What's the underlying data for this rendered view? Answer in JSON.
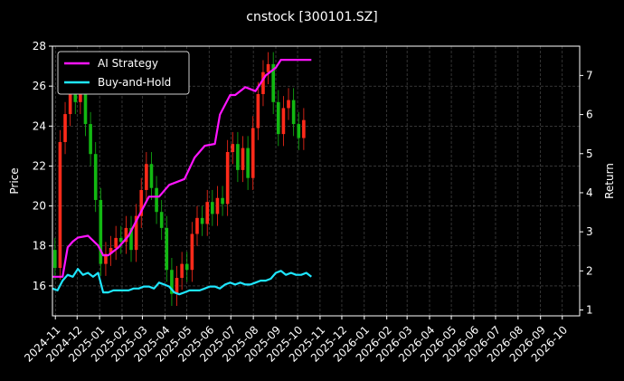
{
  "chart_data": {
    "type": "line",
    "title": "cnstock [300101.SZ]",
    "ylabel_left": "Price",
    "ylabel_right": "Return",
    "x_ticks": [
      "2024-11",
      "2024-12",
      "2025-01",
      "2025-02",
      "2025-03",
      "2025-04",
      "2025-05",
      "2025-06",
      "2025-07",
      "2025-08",
      "2025-09",
      "2025-10",
      "2025-11",
      "2025-12",
      "2026-01",
      "2026-02",
      "2026-03",
      "2026-04",
      "2026-05",
      "2026-06",
      "2026-07",
      "2026-08",
      "2026-09",
      "2026-10"
    ],
    "x_range": [
      "2024-10-28",
      "2026-10-25"
    ],
    "y_left_ticks": [
      16,
      18,
      20,
      22,
      24,
      26,
      28
    ],
    "y_left_range": [
      14.5,
      28
    ],
    "y_right_ticks": [
      1,
      2,
      3,
      4,
      5,
      6,
      7
    ],
    "y_right_range": [
      0.85,
      7.75
    ],
    "grid": true,
    "legend_position": "top-left",
    "colors": {
      "up": "#ff2a1a",
      "down": "#12b812",
      "ai": "#ff14ff",
      "bh": "#1ee6ff",
      "grid": "#555555"
    },
    "price": {
      "x": [
        "2024-10-28",
        "2024-11-04",
        "2024-11-11",
        "2024-11-18",
        "2024-11-25",
        "2024-12-02",
        "2024-12-09",
        "2024-12-16",
        "2024-12-23",
        "2024-12-30",
        "2025-01-06",
        "2025-01-13",
        "2025-01-20",
        "2025-01-27",
        "2025-02-03",
        "2025-02-10",
        "2025-02-17",
        "2025-02-24",
        "2025-03-03",
        "2025-03-10",
        "2025-03-17",
        "2025-03-24",
        "2025-03-31",
        "2025-04-07",
        "2025-04-14",
        "2025-04-21",
        "2025-04-28",
        "2025-05-05",
        "2025-05-12",
        "2025-05-19",
        "2025-05-26",
        "2025-06-02",
        "2025-06-09",
        "2025-06-16",
        "2025-06-23",
        "2025-06-30",
        "2025-07-07",
        "2025-07-14",
        "2025-07-21",
        "2025-07-28",
        "2025-08-04",
        "2025-08-11",
        "2025-08-18",
        "2025-08-25",
        "2025-09-01",
        "2025-09-08",
        "2025-09-15",
        "2025-09-22",
        "2025-09-29",
        "2025-10-06",
        "2025-10-13"
      ],
      "close": [
        17.8,
        16.9,
        23.2,
        24.6,
        26.1,
        25.2,
        25.8,
        24.1,
        22.6,
        20.3,
        17.1,
        17.6,
        17.9,
        18.4,
        18.2,
        18.9,
        17.8,
        19.5,
        20.8,
        22.1,
        20.9,
        19.7,
        18.9,
        16.8,
        15.6,
        16.4,
        17.1,
        16.8,
        18.6,
        19.4,
        19.1,
        20.2,
        19.6,
        20.4,
        20.1,
        22.7,
        23.1,
        21.8,
        22.9,
        21.4,
        23.9,
        25.6,
        26.7,
        27.1,
        25.2,
        23.6,
        24.9,
        25.3,
        24.1,
        23.4,
        24.3
      ]
    },
    "series": [
      {
        "name": "AI Strategy",
        "x": [
          "2024-10-28",
          "2024-11-11",
          "2024-11-18",
          "2024-11-25",
          "2024-12-02",
          "2024-12-16",
          "2024-12-30",
          "2025-01-06",
          "2025-01-13",
          "2025-01-27",
          "2025-02-10",
          "2025-02-24",
          "2025-03-10",
          "2025-03-24",
          "2025-04-07",
          "2025-04-14",
          "2025-04-28",
          "2025-05-12",
          "2025-05-26",
          "2025-06-09",
          "2025-06-16",
          "2025-06-30",
          "2025-07-07",
          "2025-07-21",
          "2025-08-04",
          "2025-08-18",
          "2025-09-01",
          "2025-09-08",
          "2025-09-15",
          "2025-10-20"
        ],
        "values": [
          1.85,
          1.85,
          2.6,
          2.75,
          2.85,
          2.9,
          2.65,
          2.4,
          2.4,
          2.6,
          2.9,
          3.4,
          3.9,
          3.9,
          4.2,
          4.25,
          4.35,
          4.9,
          5.2,
          5.25,
          6.0,
          6.5,
          6.5,
          6.7,
          6.6,
          7.0,
          7.2,
          7.4,
          7.4,
          7.4
        ]
      },
      {
        "name": "Buy-and-Hold",
        "x": [
          "2024-10-28",
          "2024-11-04",
          "2024-11-11",
          "2024-11-18",
          "2024-11-25",
          "2024-12-02",
          "2024-12-09",
          "2024-12-16",
          "2024-12-23",
          "2024-12-30",
          "2025-01-06",
          "2025-01-13",
          "2025-01-20",
          "2025-01-27",
          "2025-02-03",
          "2025-02-10",
          "2025-02-17",
          "2025-02-24",
          "2025-03-03",
          "2025-03-10",
          "2025-03-17",
          "2025-03-24",
          "2025-03-31",
          "2025-04-07",
          "2025-04-14",
          "2025-04-21",
          "2025-04-28",
          "2025-05-05",
          "2025-05-12",
          "2025-05-19",
          "2025-05-26",
          "2025-06-02",
          "2025-06-09",
          "2025-06-16",
          "2025-06-23",
          "2025-06-30",
          "2025-07-07",
          "2025-07-14",
          "2025-07-21",
          "2025-07-28",
          "2025-08-04",
          "2025-08-11",
          "2025-08-18",
          "2025-08-25",
          "2025-09-01",
          "2025-09-08",
          "2025-09-15",
          "2025-09-22",
          "2025-09-29",
          "2025-10-06",
          "2025-10-13",
          "2025-10-20"
        ],
        "values": [
          1.55,
          1.5,
          1.75,
          1.9,
          1.85,
          2.05,
          1.9,
          1.95,
          1.85,
          1.95,
          1.45,
          1.45,
          1.5,
          1.5,
          1.5,
          1.5,
          1.55,
          1.55,
          1.6,
          1.6,
          1.55,
          1.7,
          1.65,
          1.6,
          1.45,
          1.4,
          1.45,
          1.5,
          1.5,
          1.5,
          1.55,
          1.6,
          1.6,
          1.55,
          1.65,
          1.7,
          1.65,
          1.7,
          1.65,
          1.65,
          1.7,
          1.75,
          1.75,
          1.8,
          1.95,
          2.0,
          1.9,
          1.95,
          1.9,
          1.9,
          1.95,
          1.85
        ]
      }
    ]
  }
}
